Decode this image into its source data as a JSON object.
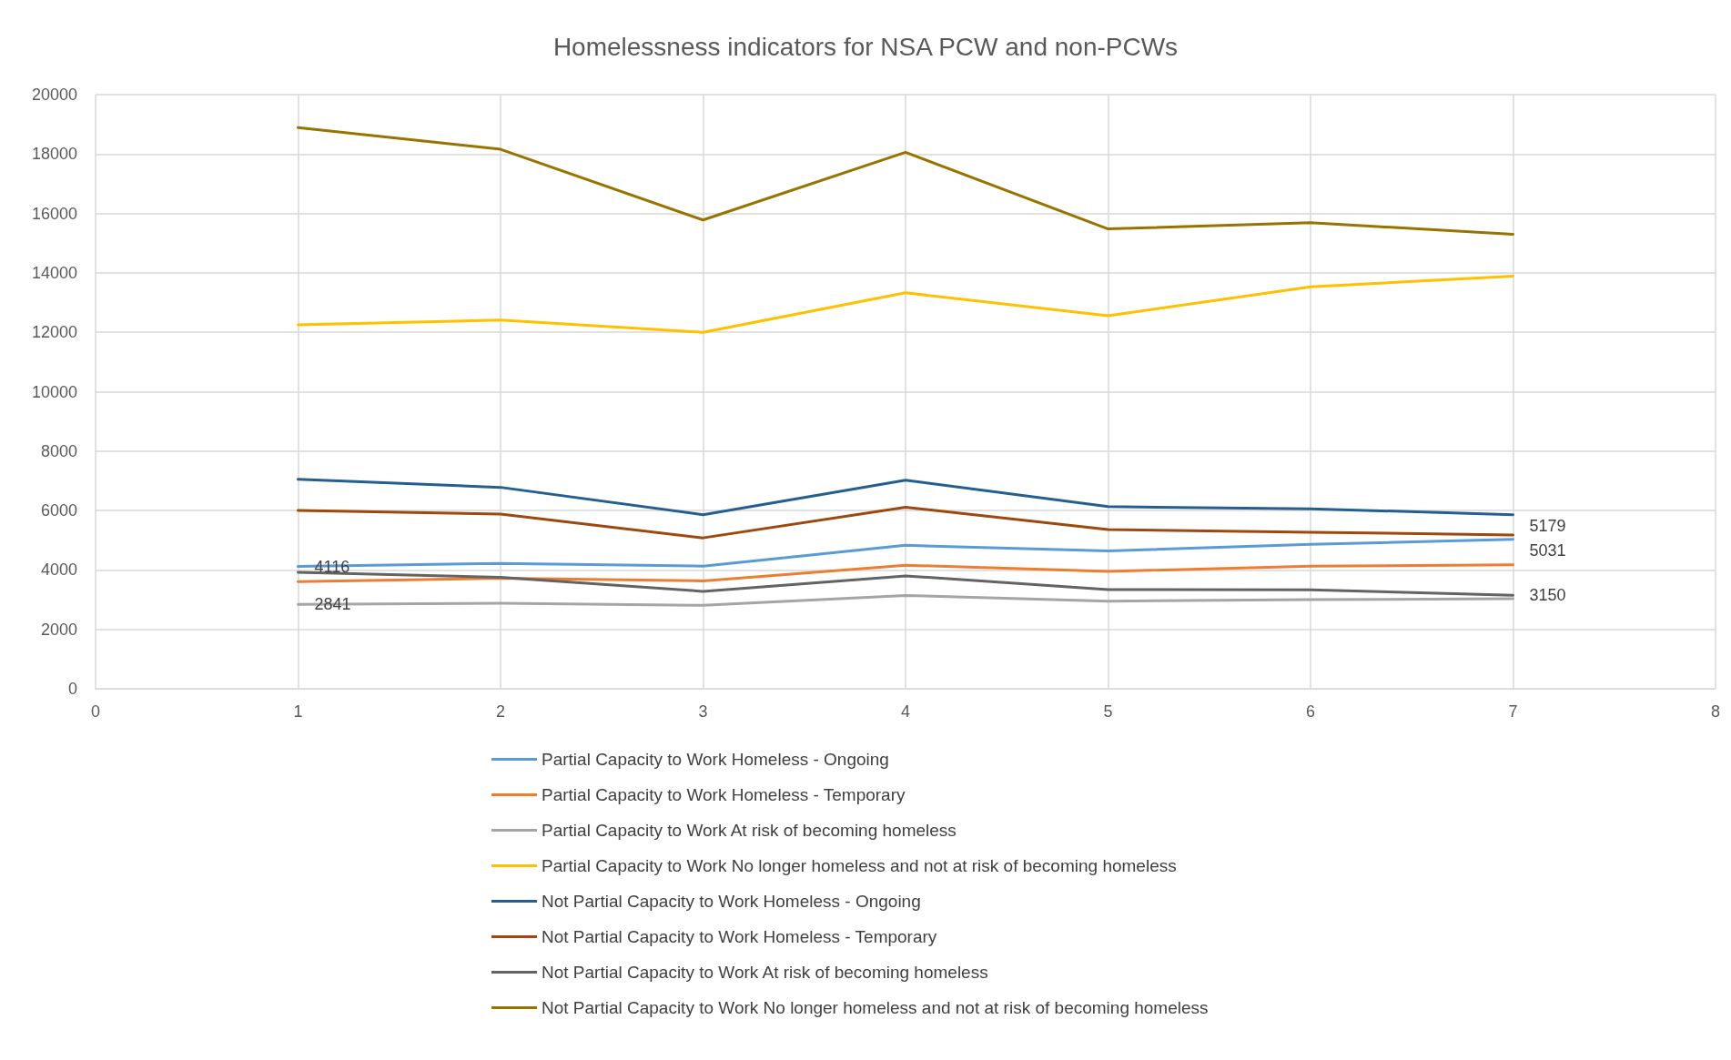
{
  "chart_data": {
    "type": "line",
    "title": "Homelessness indicators for NSA PCW and non-PCWs",
    "x": [
      1,
      2,
      3,
      4,
      5,
      6,
      7
    ],
    "xlim": [
      0,
      8
    ],
    "xticks": [
      0,
      1,
      2,
      3,
      4,
      5,
      6,
      7,
      8
    ],
    "ylim": [
      0,
      20000
    ],
    "yticks": [
      0,
      2000,
      4000,
      6000,
      8000,
      10000,
      12000,
      14000,
      16000,
      18000,
      20000
    ],
    "grid": true,
    "legend": "bottom",
    "marker": "none",
    "line_style": "solid",
    "series": [
      {
        "name": "Partial Capacity to Work Homeless - Ongoing",
        "color": "#5b9bd5",
        "values": [
          4116,
          4220,
          4130,
          4830,
          4640,
          4860,
          5031
        ],
        "value_labels": [
          "4116",
          null,
          null,
          null,
          null,
          null,
          "5031"
        ]
      },
      {
        "name": "Partial Capacity to Work Homeless - Temporary",
        "color": "#ed7d31",
        "values": [
          3610,
          3720,
          3630,
          4160,
          3950,
          4130,
          4170
        ]
      },
      {
        "name": "Partial Capacity to Work At risk of becoming homeless",
        "color": "#a5a5a5",
        "values": [
          2841,
          2880,
          2810,
          3140,
          2950,
          3000,
          3030
        ],
        "value_labels": [
          "2841",
          null,
          null,
          null,
          null,
          null,
          null
        ]
      },
      {
        "name": "Partial Capacity to Work No longer homeless and not at risk of becoming homeless",
        "color": "#ffc000",
        "values": [
          12250,
          12410,
          12000,
          13330,
          12560,
          13530,
          13890
        ]
      },
      {
        "name": "Not Partial Capacity to Work Homeless - Ongoing",
        "color": "#255e91",
        "values": [
          7050,
          6780,
          5860,
          7020,
          6130,
          6060,
          5860
        ]
      },
      {
        "name": "Not Partial Capacity to Work Homeless - Temporary",
        "color": "#9e480e",
        "values": [
          6000,
          5880,
          5080,
          6110,
          5360,
          5270,
          5179
        ],
        "value_labels": [
          null,
          null,
          null,
          null,
          null,
          null,
          "5179"
        ]
      },
      {
        "name": "Not Partial Capacity to Work At risk of becoming homeless",
        "color": "#636363",
        "values": [
          3920,
          3750,
          3280,
          3800,
          3340,
          3330,
          3150
        ],
        "value_labels": [
          null,
          null,
          null,
          null,
          null,
          null,
          "3150"
        ]
      },
      {
        "name": "Not Partial Capacity to Work No longer homeless and not at risk of becoming homeless",
        "color": "#997300",
        "values": [
          18890,
          18160,
          15780,
          18060,
          15480,
          15690,
          15300
        ]
      }
    ]
  }
}
